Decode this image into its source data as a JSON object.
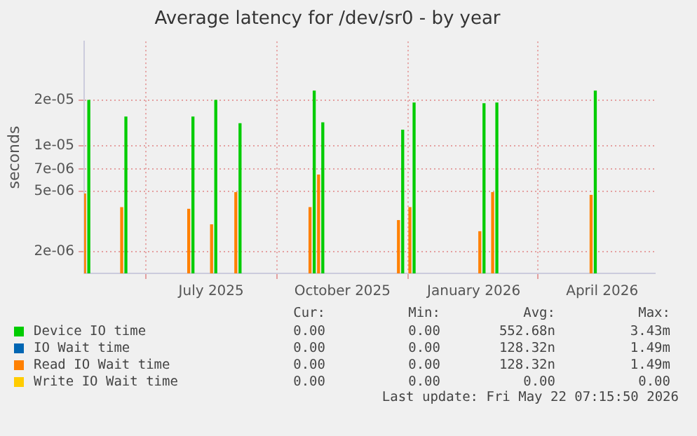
{
  "chart_data": {
    "type": "bar",
    "title": "Average latency for /dev/sr0 - by year",
    "ylabel": "seconds",
    "x": [
      "2025-04-04",
      "2025-04-30",
      "2025-06-16",
      "2025-07-02",
      "2025-07-19",
      "2025-09-09",
      "2025-09-15",
      "2025-11-10",
      "2025-11-18",
      "2026-01-06",
      "2026-01-15",
      "2026-03-25"
    ],
    "series": [
      {
        "name": "Device IO time",
        "color": "#00cc00",
        "values": [
          2e-05,
          1.55e-05,
          1.55e-05,
          2e-05,
          1.4e-05,
          2.3e-05,
          1.42e-05,
          1.27e-05,
          1.92e-05,
          1.9e-05,
          1.92e-05,
          2.3e-05
        ]
      },
      {
        "name": "IO Wait time",
        "color": "#0066b3",
        "values": [
          null,
          null,
          null,
          null,
          null,
          null,
          null,
          null,
          null,
          null,
          null,
          null
        ]
      },
      {
        "name": "Read IO Wait time",
        "color": "#ff8000",
        "values": [
          4.8e-06,
          3.9e-06,
          3.8e-06,
          3e-06,
          4.9e-06,
          3.9e-06,
          6.4e-06,
          3.2e-06,
          3.9e-06,
          2.7e-06,
          4.9e-06,
          4.7e-06
        ]
      },
      {
        "name": "Write IO Wait time",
        "color": "#ffcc00",
        "values": [
          null,
          null,
          null,
          null,
          null,
          null,
          null,
          null,
          null,
          null,
          null,
          null
        ]
      }
    ],
    "xlim": [
      "2025-04-03",
      "2026-05-08"
    ],
    "xticks": [
      {
        "value": "2025-07-01",
        "label": "July 2025"
      },
      {
        "value": "2025-10-01",
        "label": "October 2025"
      },
      {
        "value": "2026-01-01",
        "label": "January 2026"
      },
      {
        "value": "2026-04-01",
        "label": "April 2026"
      }
    ],
    "ylim": [
      1.43e-06,
      4.9e-05
    ],
    "yticks": [
      {
        "value": 2e-06,
        "label": "2e-06"
      },
      {
        "value": 5e-06,
        "label": "5e-06"
      },
      {
        "value": 7e-06,
        "label": "7e-06"
      },
      {
        "value": 1e-05,
        "label": "1e-05"
      },
      {
        "value": 2e-05,
        "label": "2e-05"
      }
    ],
    "log": true,
    "grid": true,
    "legend": "bottom",
    "annotations": [
      "Cur:",
      "Min:",
      "Avg:",
      "Max:",
      "0.00",
      "0.00",
      "552.68n",
      "3.43m",
      "0.00",
      "0.00",
      "128.32n",
      "1.49m",
      "0.00",
      "0.00",
      "128.32n",
      "1.49m",
      "0.00",
      "0.00",
      "0.00",
      "0.00",
      "Last update: Fri May 22 07:15:50 2026"
    ]
  }
}
